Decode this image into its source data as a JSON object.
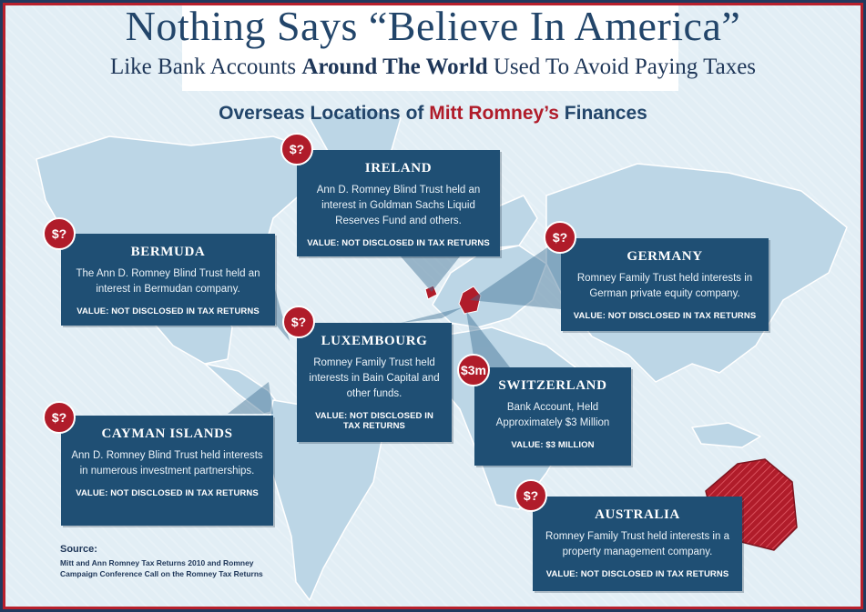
{
  "header": {
    "title": "Nothing Says “Believe In America”",
    "subtitle_pre": "Like Bank Accounts ",
    "subtitle_bold": "Around The World",
    "subtitle_post": " Used To Avoid Paying Taxes"
  },
  "heading": {
    "pre": "Overseas Locations of ",
    "highlight": "Mitt Romney’s",
    "post": " Finances"
  },
  "colors": {
    "navy": "#1f4f74",
    "red": "#b01c2a",
    "land": "#bcd6e6",
    "ocean": "#e2eef5"
  },
  "locations": [
    {
      "id": "ireland",
      "name": "IRELAND",
      "badge": "$?",
      "description": "Ann D. Romney Blind Trust held an interest in Goldman Sachs Liquid Reserves Fund and others.",
      "value": "VALUE: NOT DISCLOSED IN TAX RETURNS"
    },
    {
      "id": "bermuda",
      "name": "BERMUDA",
      "badge": "$?",
      "description": "The Ann D. Romney Blind Trust held an interest in Bermudan company.",
      "value": "VALUE: NOT DISCLOSED IN TAX RETURNS"
    },
    {
      "id": "germany",
      "name": "GERMANY",
      "badge": "$?",
      "description": "Romney Family Trust held interests in German private equity company.",
      "value": "VALUE: NOT DISCLOSED IN TAX RETURNS"
    },
    {
      "id": "luxembourg",
      "name": "LUXEMBOURG",
      "badge": "$?",
      "description": "Romney Family Trust held interests in Bain Capital and other funds.",
      "value": "VALUE: NOT DISCLOSED IN TAX RETURNS"
    },
    {
      "id": "switzerland",
      "name": "SWITZERLAND",
      "badge": "$3m",
      "description": "Bank Account, Held Approximately $3 Million",
      "value": "VALUE: $3 MILLION"
    },
    {
      "id": "cayman",
      "name": "CAYMAN ISLANDS",
      "badge": "$?",
      "description": "Ann D. Romney Blind Trust held interests in numerous investment partnerships.",
      "value": "VALUE: NOT DISCLOSED IN TAX RETURNS"
    },
    {
      "id": "australia",
      "name": "AUSTRALIA",
      "badge": "$?",
      "description": "Romney Family Trust held interests in a property management company.",
      "value": "VALUE: NOT DISCLOSED IN TAX RETURNS"
    }
  ],
  "source": {
    "label": "Source:",
    "text": "Mitt and Ann Romney Tax Returns 2010 and Romney Campaign Conference Call on the Romney Tax Returns"
  }
}
